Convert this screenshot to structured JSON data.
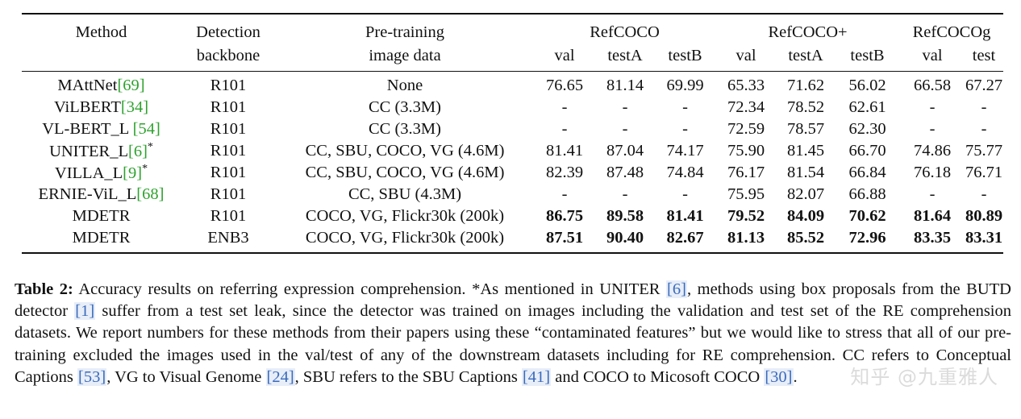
{
  "table": {
    "headers": {
      "method": "Method",
      "det_top": "Detection",
      "det_bottom": "backbone",
      "pre_top": "Pre-training",
      "pre_bottom": "image data",
      "groups": [
        "RefCOCO",
        "RefCOCO+",
        "RefCOCOg"
      ],
      "subcols": [
        "val",
        "testA",
        "testB",
        "val",
        "testA",
        "testB",
        "val",
        "test"
      ]
    },
    "rows": [
      {
        "method": "MAttNet",
        "cite": "69",
        "suffix": "",
        "backbone": "R101",
        "data": "None",
        "vals": [
          "76.65",
          "81.14",
          "69.99",
          "65.33",
          "71.62",
          "56.02",
          "66.58",
          "67.27"
        ],
        "bold": false
      },
      {
        "method": "ViLBERT",
        "cite": "34",
        "suffix": "",
        "backbone": "R101",
        "data": "CC (3.3M)",
        "vals": [
          "-",
          "-",
          "-",
          "72.34",
          "78.52",
          "62.61",
          "-",
          "-"
        ],
        "bold": false
      },
      {
        "method": "VL-BERT_L ",
        "cite": "54",
        "suffix": "",
        "backbone": "R101",
        "data": "CC (3.3M)",
        "vals": [
          "-",
          "-",
          "-",
          "72.59",
          "78.57",
          "62.30",
          "-",
          "-"
        ],
        "bold": false
      },
      {
        "method": "UNITER_L",
        "cite": "6",
        "suffix": "*",
        "backbone": "R101",
        "data": "CC, SBU, COCO, VG (4.6M)",
        "vals": [
          "81.41",
          "87.04",
          "74.17",
          "75.90",
          "81.45",
          "66.70",
          "74.86",
          "75.77"
        ],
        "bold": false
      },
      {
        "method": "VILLA_L",
        "cite": "9",
        "suffix": "*",
        "backbone": "R101",
        "data": "CC, SBU, COCO, VG (4.6M)",
        "vals": [
          "82.39",
          "87.48",
          "74.84",
          "76.17",
          "81.54",
          "66.84",
          "76.18",
          "76.71"
        ],
        "bold": false
      },
      {
        "method": "ERNIE-ViL_L",
        "cite": "68",
        "suffix": "",
        "backbone": "R101",
        "data": "CC, SBU (4.3M)",
        "vals": [
          "-",
          "-",
          "-",
          "75.95",
          "82.07",
          "66.88",
          "-",
          "-"
        ],
        "bold": false
      },
      {
        "method": "MDETR",
        "cite": "",
        "suffix": "",
        "backbone": "R101",
        "data": "COCO, VG, Flickr30k (200k)",
        "vals": [
          "86.75",
          "89.58",
          "81.41",
          "79.52",
          "84.09",
          "70.62",
          "81.64",
          "80.89"
        ],
        "bold": true
      },
      {
        "method": "MDETR",
        "cite": "",
        "suffix": "",
        "backbone": "ENB3",
        "data": "COCO, VG, Flickr30k (200k)",
        "vals": [
          "87.51",
          "90.40",
          "82.67",
          "81.13",
          "85.52",
          "72.96",
          "83.35",
          "83.31"
        ],
        "bold": true
      }
    ]
  },
  "caption": {
    "label": "Table 2:",
    "parts": [
      " Accuracy results on referring expression comprehension. *As mentioned in UNITER ",
      {
        "ref": "[6]"
      },
      ", methods using box proposals from the BUTD detector ",
      {
        "ref": "[1]"
      },
      " suffer from a test set leak, since the detector was trained on images including the validation and test set of the RE comprehension datasets. We report numbers for these methods from their papers using these “contaminated features” but we would like to stress that all of our pre-training excluded the images used in the val/test of any of the downstream datasets including for RE comprehension. CC refers to Conceptual Captions ",
      {
        "ref": "[53]"
      },
      ", VG to Visual Genome ",
      {
        "ref": "[24]"
      },
      ", SBU refers to the SBU Captions ",
      {
        "ref": "[41]"
      },
      " and COCO to Micosoft COCO ",
      {
        "ref": "[30]"
      },
      "."
    ]
  },
  "watermark": "知乎 @九重雅人"
}
